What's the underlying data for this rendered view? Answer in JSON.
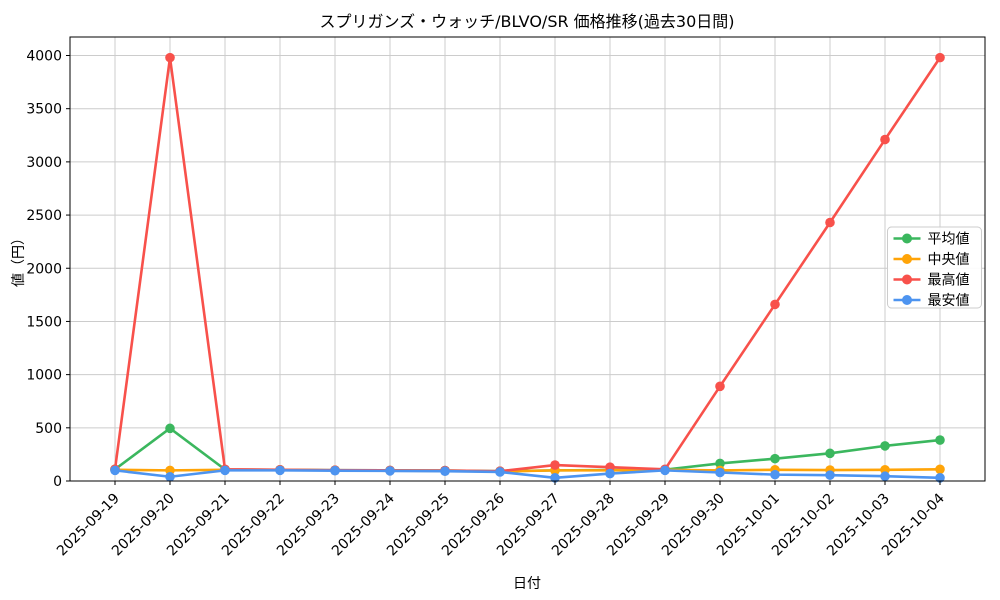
{
  "chart_data": {
    "type": "line",
    "title": "スプリガンズ・ウォッチ/BLVO/SR 価格推移(過去30日間)",
    "xlabel": "日付",
    "ylabel": "値（円）",
    "ylim": [
      0,
      4000
    ],
    "yticks": [
      0,
      500,
      1000,
      1500,
      2000,
      2500,
      3000,
      3500,
      4000
    ],
    "grid": true,
    "legend_position": "center-right",
    "categories": [
      "2025-09-19",
      "2025-09-20",
      "2025-09-21",
      "2025-09-22",
      "2025-09-23",
      "2025-09-24",
      "2025-09-25",
      "2025-09-26",
      "2025-09-27",
      "2025-09-28",
      "2025-09-29",
      "2025-09-30",
      "2025-10-01",
      "2025-10-02",
      "2025-10-03",
      "2025-10-04"
    ],
    "series": [
      {
        "key": "average",
        "name": "平均値",
        "color": "#3bb75e",
        "values": [
          110,
          495,
          108,
          105,
          102,
          100,
          98,
          92,
          100,
          103,
          107,
          165,
          210,
          260,
          330,
          385
        ]
      },
      {
        "key": "median",
        "name": "中央値",
        "color": "#ffa408",
        "values": [
          105,
          100,
          105,
          105,
          100,
          98,
          95,
          90,
          100,
          100,
          105,
          100,
          105,
          103,
          105,
          110
        ]
      },
      {
        "key": "max",
        "name": "最高値",
        "color": "#f8514b",
        "values": [
          110,
          3980,
          110,
          105,
          102,
          100,
          98,
          92,
          150,
          130,
          110,
          890,
          1660,
          2430,
          3210,
          3980
        ]
      },
      {
        "key": "min",
        "name": "最安値",
        "color": "#4d94f0",
        "values": [
          100,
          40,
          100,
          100,
          97,
          95,
          92,
          85,
          30,
          70,
          100,
          80,
          60,
          55,
          45,
          30
        ]
      }
    ],
    "style": {
      "grid_color": "#cccccc",
      "spine_color": "#000000",
      "background": "#ffffff",
      "legend_border": "#cccccc"
    }
  }
}
